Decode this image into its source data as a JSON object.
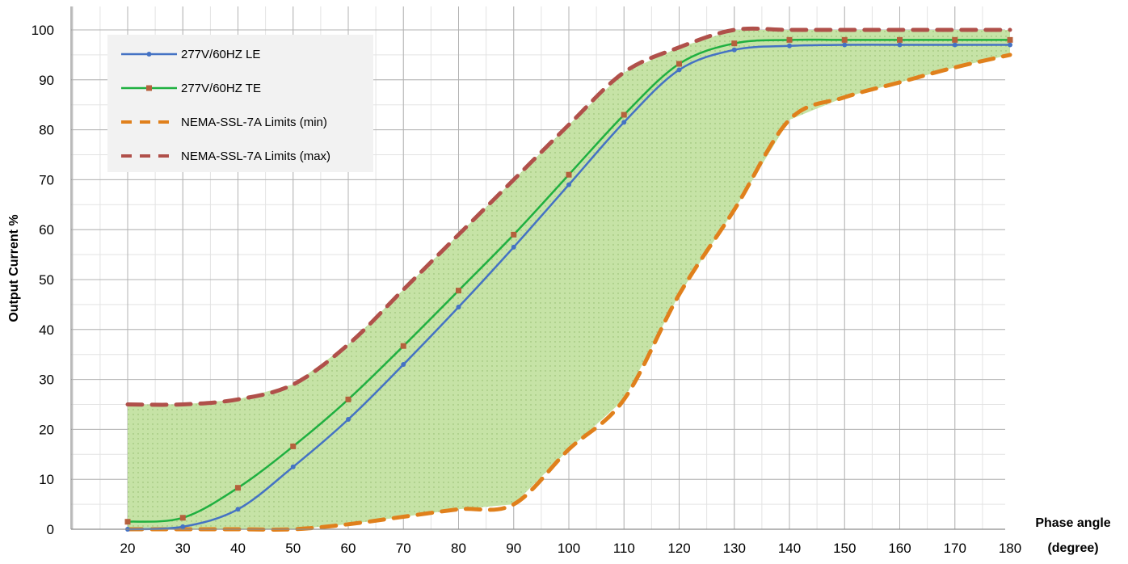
{
  "chart_data": {
    "type": "line",
    "title": "",
    "xlabel": "Phase angle",
    "xlabel_unit": "(degree)",
    "ylabel": "Output Current %",
    "xlim": [
      20,
      180
    ],
    "ylim": [
      0,
      100
    ],
    "x_ticks": [
      "20",
      "30",
      "40",
      "50",
      "60",
      "70",
      "80",
      "90",
      "100",
      "110",
      "120",
      "130",
      "140",
      "150",
      "160",
      "170",
      "180"
    ],
    "y_ticks": [
      "0",
      "10",
      "20",
      "30",
      "40",
      "50",
      "60",
      "70",
      "80",
      "90",
      "100"
    ],
    "grid": true,
    "minor_grid": true,
    "legend_position": "top-left",
    "fill_between": {
      "lower": "NEMA-SSL-7A Limits (min)",
      "upper": "NEMA-SSL-7A Limits (max)",
      "color": "#c6e3a6"
    },
    "series": [
      {
        "name": "277V/60HZ LE",
        "color": "#4472c4",
        "style": "solid",
        "marker": "circle",
        "x": [
          20,
          30,
          40,
          50,
          60,
          70,
          80,
          90,
          100,
          110,
          120,
          130,
          140,
          150,
          160,
          170,
          180
        ],
        "y": [
          0,
          0.5,
          4,
          12.5,
          22,
          33,
          44.5,
          56.5,
          69,
          81.5,
          92,
          96,
          96.8,
          97,
          97,
          97,
          97
        ]
      },
      {
        "name": "277V/60HZ TE",
        "color": "#1fb040",
        "style": "solid",
        "marker": "square",
        "x": [
          20,
          30,
          40,
          50,
          60,
          70,
          80,
          90,
          100,
          110,
          120,
          130,
          140,
          150,
          160,
          170,
          180
        ],
        "y": [
          1.5,
          2.3,
          8.3,
          16.6,
          26,
          36.7,
          47.8,
          59,
          71,
          83,
          93.2,
          97.3,
          98,
          98,
          98,
          98,
          98
        ]
      },
      {
        "name": "NEMA-SSL-7A Limits (min)",
        "color": "#e0801c",
        "style": "dashed",
        "marker": "none",
        "x": [
          20,
          30,
          40,
          50,
          60,
          70,
          80,
          90,
          100,
          110,
          120,
          130,
          140,
          150,
          160,
          170,
          180
        ],
        "y": [
          0,
          0,
          0,
          0,
          1,
          2.5,
          4,
          5,
          16,
          26,
          47,
          64,
          82,
          86.5,
          89.5,
          92.5,
          95
        ]
      },
      {
        "name": "NEMA-SSL-7A Limits (max)",
        "color": "#b0504a",
        "style": "dashed",
        "marker": "none",
        "x": [
          20,
          30,
          40,
          50,
          60,
          70,
          80,
          90,
          100,
          110,
          120,
          130,
          140,
          150,
          160,
          170,
          180
        ],
        "y": [
          25,
          25,
          26,
          29,
          37,
          48,
          59,
          70,
          81,
          91.5,
          96.5,
          100,
          100,
          100,
          100,
          100,
          100
        ]
      }
    ]
  }
}
